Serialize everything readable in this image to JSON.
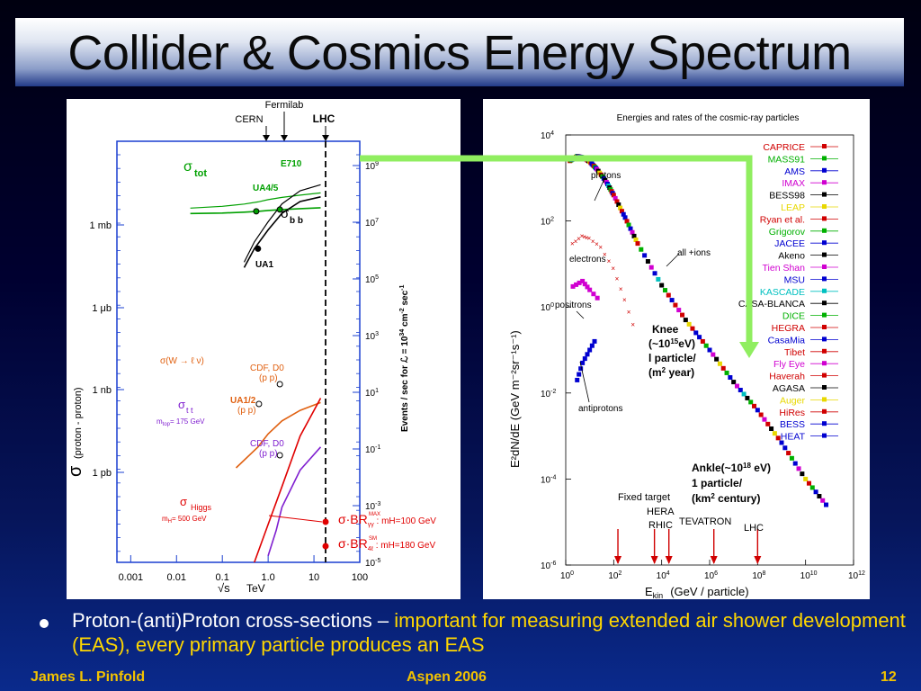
{
  "slide": {
    "title": "Collider & Cosmics Energy Spectrum",
    "bullet_plain": "Proton-(anti)Proton cross-sections – ",
    "bullet_highlight": "important for measuring extended air shower development (EAS), every primary particle produces an EAS",
    "footer_left": "James L. Pinfold",
    "footer_center": "Aspen  2006",
    "footer_right": "12",
    "colors": {
      "connector": "#90ee60",
      "highlight": "#ffd700",
      "footer": "#f2c200"
    }
  },
  "chart_data": [
    {
      "type": "line",
      "title": "",
      "xlabel_sqrt": "√s",
      "xlabel_unit": "TeV",
      "ylabel_sigma": "σ",
      "ylabel": "(proton - proton)",
      "y2label_a": "Events / sec for ",
      "y2label_b": "ℒ = 10",
      "y2label_c": "34",
      "y2label_d": " cm",
      "y2label_e": "-2",
      "y2label_f": " sec",
      "y2label_g": "-1",
      "xscale": "log",
      "xlim": [
        0.0005,
        100
      ],
      "x_ticks": [
        "0.001",
        "0.01",
        "0.1",
        "1.0",
        "10",
        "100"
      ],
      "y_ticks_left": [
        "1 mb",
        "1 μb",
        "1 nb",
        "1 pb"
      ],
      "y_ticks_right": [
        [
          "10",
          "9"
        ],
        [
          "10",
          "7"
        ],
        [
          "10",
          "5"
        ],
        [
          "10",
          "3"
        ],
        [
          "10",
          "1"
        ],
        [
          "10",
          "-1"
        ],
        [
          "10",
          "-3"
        ],
        [
          "10",
          "-5"
        ]
      ],
      "accelerators": [
        "CERN",
        "Fermilab",
        "LHC"
      ],
      "labels": {
        "tot_sigma": "σ",
        "tot": "tot",
        "e710": "E710",
        "ua45": "UA4/5",
        "sigma_bb": "σ",
        "bb": "b b",
        "ua1": "UA1",
        "w_label": "σ(W → ℓ ν)",
        "cdf1": "CDF, D0",
        "ppbar1": "(p p)",
        "ua12": "UA1/2",
        "ppbar2": "(p p)",
        "sigma_tt": "σ",
        "tt": "t t",
        "mtop": "m",
        "mtop_sub": "top",
        "mtop_val": "= 175 GeV",
        "cdf2": "CDF, D0",
        "ppbar3": "(p p)",
        "sigma_higgs": "σ",
        "higgs": "Higgs",
        "mh": "m",
        "mh_sub": "H",
        "mh_val": "= 500 GeV",
        "br1": "σ·BR",
        "br1_sub": "γγ",
        "br1_sup": "MAX",
        "br1_rest": " : mH=100 GeV",
        "br2": "σ·BR",
        "br2_sub": "4ℓ",
        "br2_sup": "SM",
        "br2_rest": " : mH=180 GeV"
      },
      "series": [
        {
          "name": "tot",
          "color": "#00a000",
          "x": [
            0.02,
            0.1,
            0.3,
            0.6,
            1,
            2,
            5,
            14
          ],
          "y": [
            0.04,
            0.045,
            0.055,
            0.065,
            0.075,
            0.085,
            0.095,
            0.105
          ]
        },
        {
          "name": "b b",
          "color": "#000000",
          "x": [
            0.3,
            0.5,
            1,
            2,
            5,
            14
          ],
          "y": [
            0.5,
            0.58,
            0.66,
            0.73,
            0.78,
            0.8
          ]
        },
        {
          "name": "W",
          "color": "#e06010",
          "x": [
            0.2,
            0.6,
            1,
            2,
            5,
            14
          ],
          "y": [
            0.12,
            0.2,
            0.25,
            0.3,
            0.34,
            0.37
          ]
        },
        {
          "name": "t t",
          "color": "#8020d0",
          "x": [
            1,
            1.5,
            2,
            5,
            14
          ],
          "y": [
            0.01,
            0.12,
            0.22,
            0.38,
            0.48
          ]
        },
        {
          "name": "Higgs",
          "color": "#e00000",
          "x": [
            0.5,
            1,
            2,
            5,
            14
          ],
          "y": [
            0.0,
            0.15,
            0.3,
            0.5,
            0.65
          ]
        }
      ],
      "points": [
        {
          "label": "UA4/5",
          "x": 0.55,
          "color": "#00a000"
        },
        {
          "label": "E710",
          "x": 1.8,
          "color": "#00a000"
        },
        {
          "label": "UA1",
          "x": 0.6,
          "color": "#000000"
        },
        {
          "label": "CDF, D0",
          "x": 1.8,
          "color": "#e06010"
        },
        {
          "label": "UA1/2",
          "x": 0.63,
          "color": "#e06010"
        },
        {
          "label": "CDF, D0",
          "x": 1.8,
          "color": "#8020d0"
        }
      ]
    },
    {
      "type": "scatter",
      "title": "Energies and rates of the cosmic-ray particles",
      "xlabel_a": "E",
      "xlabel_sub": "kin",
      "xlabel_b": "(GeV / particle)",
      "ylabel": "E²dN/dE    (GeV m⁻²sr⁻¹s⁻¹)",
      "xscale": "log",
      "yscale": "log",
      "xlim": [
        1,
        1000000000000.0
      ],
      "ylim": [
        1e-06,
        10000.0
      ],
      "x_ticks": [
        [
          "10",
          "0"
        ],
        [
          "10",
          "2"
        ],
        [
          "10",
          "4"
        ],
        [
          "10",
          "6"
        ],
        [
          "10",
          "8"
        ],
        [
          "10",
          "10"
        ],
        [
          "10",
          "12"
        ]
      ],
      "y_ticks": [
        [
          "10",
          "4"
        ],
        [
          "10",
          "2"
        ],
        [
          "10",
          "0"
        ],
        [
          "10",
          "-2"
        ],
        [
          "10",
          "-4"
        ],
        [
          "10",
          "-6"
        ]
      ],
      "annotations": {
        "protons": "protons",
        "electrons": "electrons",
        "positrons": "positrons",
        "antiprotons": "antiprotons",
        "all_ions": "all +ions",
        "knee_1": "Knee",
        "knee_2a": "(~10",
        "knee_2b": "15",
        "knee_2c": "eV)",
        "knee_3": "l particle/",
        "knee_4a": "(m",
        "knee_4b": "2",
        "knee_4c": " year)",
        "ankle_1a": "Ankle(~10",
        "ankle_1b": "18",
        "ankle_1c": " eV)",
        "ankle_2": "1 particle/",
        "ankle_3a": "(km",
        "ankle_3b": "2",
        "ankle_3c": " century)",
        "fixed_target": "Fixed target",
        "hera": "HERA",
        "rhic": "RHIC",
        "tevatron": "TEVATRON",
        "lhc": "LHC"
      },
      "legend_position": "right",
      "legend": [
        {
          "name": "CAPRICE",
          "color": "#d00000"
        },
        {
          "name": "MASS91",
          "color": "#00b000"
        },
        {
          "name": "AMS",
          "color": "#0000d0"
        },
        {
          "name": "IMAX",
          "color": "#d000d0"
        },
        {
          "name": "BESS98",
          "color": "#000000"
        },
        {
          "name": "LEAP",
          "color": "#e8d800"
        },
        {
          "name": "Ryan et al.",
          "color": "#d00000"
        },
        {
          "name": "Grigorov",
          "color": "#00b000"
        },
        {
          "name": "JACEE",
          "color": "#0000d0"
        },
        {
          "name": "Akeno",
          "color": "#000000"
        },
        {
          "name": "Tien Shan",
          "color": "#d000d0"
        },
        {
          "name": "MSU",
          "color": "#0000d0"
        },
        {
          "name": "KASCADE",
          "color": "#00c0c0"
        },
        {
          "name": "CASA-BLANCA",
          "color": "#000000"
        },
        {
          "name": "DICE",
          "color": "#00b000"
        },
        {
          "name": "HEGRA",
          "color": "#d00000"
        },
        {
          "name": "CasaMia",
          "color": "#0000d0"
        },
        {
          "name": "Tibet",
          "color": "#d00000"
        },
        {
          "name": "Fly Eye",
          "color": "#d000d0"
        },
        {
          "name": "Haverah",
          "color": "#d00000"
        },
        {
          "name": "AGASA",
          "color": "#000000"
        },
        {
          "name": "Auger",
          "color": "#e8d800"
        },
        {
          "name": "HiRes",
          "color": "#d00000"
        },
        {
          "name": "BESS",
          "color": "#0000d0"
        },
        {
          "name": "HEAT",
          "color": "#0000d0"
        }
      ],
      "series": [
        {
          "name": "protons / all particles",
          "color": "#000000",
          "x": [
            1.5,
            3,
            5,
            10,
            20,
            50,
            100,
            300,
            1000,
            10000.0,
            100000.0,
            1000000.0,
            10000000.0,
            100000000.0,
            1000000000.0,
            10000000000.0,
            100000000000.0
          ],
          "y": [
            2500,
            3200,
            3000,
            2400,
            1600,
            800,
            400,
            120,
            30,
            3.2,
            0.5,
            0.1,
            0.018,
            0.004,
            0.0007,
            0.0001,
            2e-05
          ]
        },
        {
          "name": "electrons",
          "color": "#d00000",
          "x": [
            2,
            5,
            10,
            30,
            100,
            300,
            1000
          ],
          "y": [
            30,
            45,
            40,
            25,
            8,
            1.5,
            0.2
          ]
        },
        {
          "name": "positrons",
          "color": "#d000d0",
          "x": [
            2,
            5,
            10,
            30
          ],
          "y": [
            3,
            4,
            2.5,
            1.3
          ]
        },
        {
          "name": "antiprotons",
          "color": "#0000d0",
          "x": [
            3,
            5,
            10,
            20
          ],
          "y": [
            0.02,
            0.05,
            0.1,
            0.2
          ]
        }
      ],
      "arrows_x": [
        150,
        5000,
        20000,
        1500000.0,
        100000000.0
      ]
    }
  ]
}
